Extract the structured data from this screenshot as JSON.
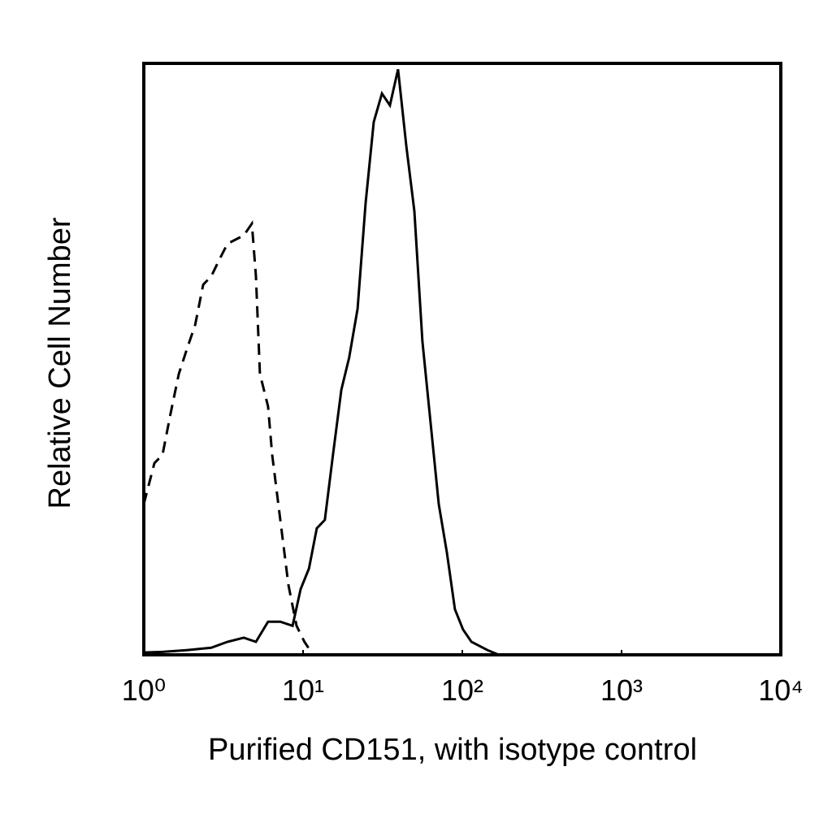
{
  "chart_data": {
    "type": "line",
    "x_label": "Purified CD151, with isotype control",
    "y_label": "Relative Cell Number",
    "xscale": "log",
    "xlim": [
      1,
      10000
    ],
    "xticks": [
      {
        "value": 1,
        "label": "10⁰"
      },
      {
        "value": 10,
        "label": "10¹"
      },
      {
        "value": 100,
        "label": "10²"
      },
      {
        "value": 1000,
        "label": "10³"
      },
      {
        "value": 10000,
        "label": "10⁴"
      }
    ],
    "ylim": [
      0,
      100
    ],
    "grid": false,
    "series": [
      {
        "color": "#000000",
        "dashed": false,
        "x": [
          1,
          1.31,
          1.86,
          2.65,
          3.35,
          4.24,
          5.06,
          6.03,
          7.2,
          8.59,
          9.65,
          10.9,
          12.2,
          13.7,
          15.4,
          17.4,
          19.5,
          22,
          24.7,
          27.8,
          31.3,
          35.1,
          39.5,
          44.5,
          50,
          56.2,
          63.2,
          71.1,
          80,
          89.9,
          101,
          114,
          144,
          166
        ],
        "values": [
          0.4,
          0.5,
          0.8,
          1.2,
          2.2,
          2.9,
          2.2,
          5.6,
          5.6,
          4.9,
          11.1,
          14.6,
          21.4,
          22.8,
          33.8,
          44.8,
          50.3,
          58.5,
          76.4,
          90.1,
          94.9,
          92.9,
          99.0,
          86.0,
          75.0,
          53.0,
          39.3,
          25.5,
          17.3,
          7.7,
          4.3,
          2.2,
          0.8,
          0.1
        ]
      },
      {
        "color": "#000000",
        "dashed": true,
        "x": [
          1,
          1.165,
          1.31,
          1.47,
          1.66,
          1.86,
          2.1,
          2.36,
          2.65,
          2.98,
          3.35,
          3.77,
          4.24,
          4.77,
          5.06,
          5.36,
          6.03,
          6.4,
          6.79,
          7.2,
          7.63,
          8.09,
          9.1,
          10.2,
          11.5
        ],
        "values": [
          25.5,
          32.4,
          33.8,
          40.7,
          47.5,
          51.6,
          55.8,
          62.6,
          64.0,
          66.8,
          69.5,
          70.2,
          70.9,
          72.9,
          64.0,
          47.5,
          42.0,
          33.8,
          28.3,
          22.8,
          17.3,
          11.8,
          4.9,
          2.2,
          0.1
        ]
      }
    ]
  }
}
